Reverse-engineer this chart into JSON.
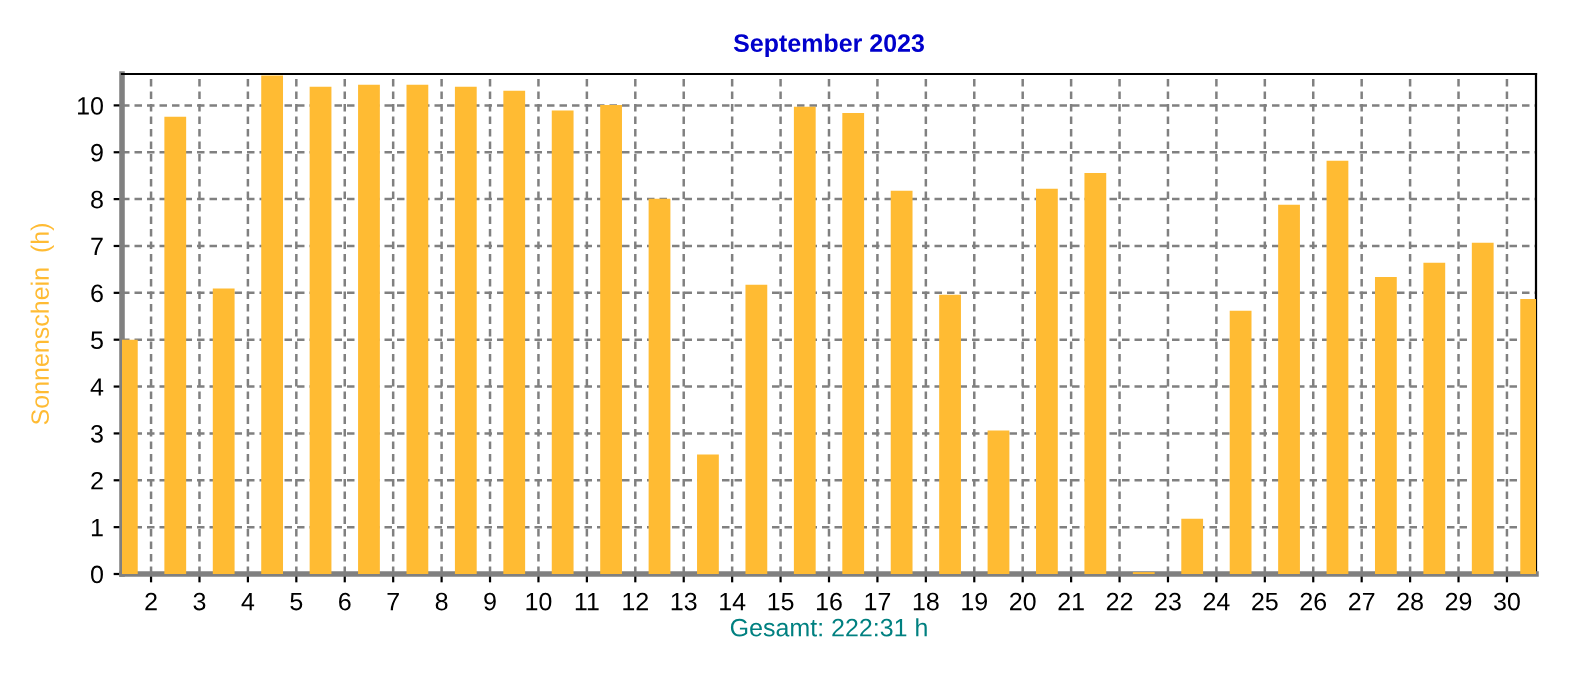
{
  "chart_data": {
    "type": "bar",
    "title": "September 2023",
    "ylabel": "Sonnenschein  (h)",
    "xlabel": "Gesamt: 222:31 h",
    "x": [
      1.5,
      2.5,
      3.5,
      4.5,
      5.5,
      6.5,
      7.5,
      8.5,
      9.5,
      10.5,
      11.5,
      12.5,
      13.5,
      14.5,
      15.5,
      16.5,
      17.5,
      18.5,
      19.5,
      20.5,
      21.5,
      22.5,
      23.5,
      24.5,
      25.5,
      26.5,
      27.5,
      28.5,
      29.5,
      30.5
    ],
    "values": [
      5.0,
      9.76,
      6.09,
      10.64,
      10.4,
      10.44,
      10.44,
      10.4,
      10.31,
      9.89,
      10.01,
      8.01,
      2.55,
      6.17,
      9.97,
      9.84,
      8.18,
      5.96,
      3.06,
      8.22,
      8.56,
      0.04,
      1.18,
      5.62,
      7.88,
      8.82,
      6.34,
      6.64,
      7.07,
      5.87
    ],
    "color": "#ffbb33",
    "xlim": [
      1.4,
      30.6
    ],
    "xticks": [
      2,
      3,
      4,
      5,
      6,
      7,
      8,
      9,
      10,
      11,
      12,
      13,
      14,
      15,
      16,
      17,
      18,
      19,
      20,
      21,
      22,
      23,
      24,
      25,
      26,
      27,
      28,
      29,
      30
    ],
    "ylim": [
      0,
      10.67
    ],
    "yticks": [
      0,
      1,
      2,
      3,
      4,
      5,
      6,
      7,
      8,
      9,
      10
    ],
    "grid": true
  }
}
